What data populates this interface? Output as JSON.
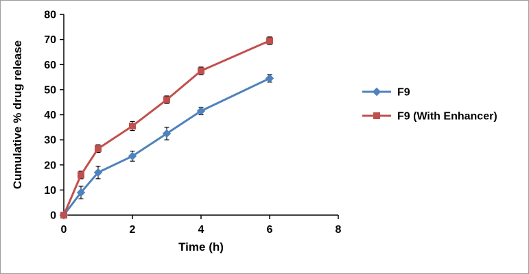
{
  "frame": {
    "background": "#ffffff",
    "border_color": "#9b9b9b"
  },
  "chart_data": {
    "type": "line",
    "title": "",
    "xlabel": "Time (h)",
    "ylabel": "Cumulative % drug release",
    "xlim": [
      0,
      8
    ],
    "ylim": [
      0,
      80
    ],
    "xticks": [
      0,
      2,
      4,
      6,
      8
    ],
    "yticks": [
      0,
      10,
      20,
      30,
      40,
      50,
      60,
      70,
      80
    ],
    "grid": false,
    "legend_position": "right",
    "axis_color": "#000000",
    "error_bar_color": "#000000",
    "x": [
      0,
      0.5,
      1,
      2,
      3,
      4,
      6
    ],
    "series": [
      {
        "name": "F9",
        "color": "#4F81BD",
        "marker": "diamond",
        "values": [
          0,
          9,
          17,
          23.5,
          32.5,
          41.5,
          54.5
        ],
        "error": [
          0,
          2.5,
          2.5,
          2,
          2.5,
          1.5,
          1.5
        ]
      },
      {
        "name": "F9 (With Enhancer)",
        "color": "#C0504D",
        "marker": "square",
        "values": [
          0,
          16,
          26.5,
          35.5,
          46,
          57.5,
          69.5
        ],
        "error": [
          0,
          1.5,
          1.5,
          1.8,
          1.5,
          1.5,
          1.5
        ]
      }
    ]
  }
}
